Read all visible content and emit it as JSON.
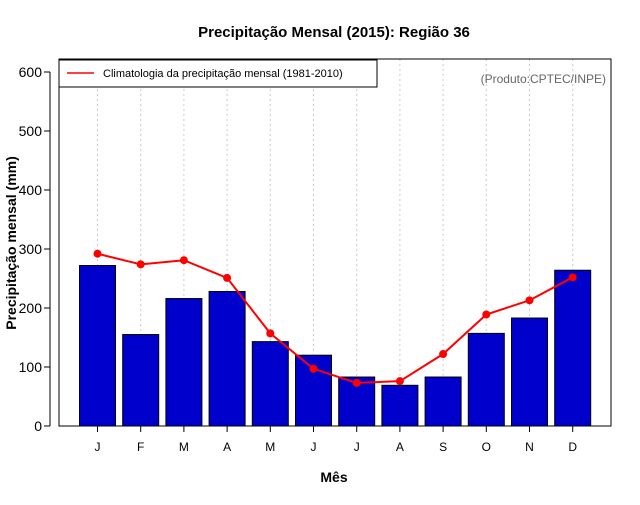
{
  "chart_data": {
    "type": "bar",
    "title": "Precipitação Mensal (2015): Região 36",
    "xlabel": "Mês",
    "ylabel": "Precipitação mensal (mm)",
    "ylim": [
      0,
      600
    ],
    "yticks": [
      0,
      100,
      200,
      300,
      400,
      500,
      600
    ],
    "categories": [
      "J",
      "F",
      "M",
      "A",
      "M",
      "J",
      "J",
      "A",
      "S",
      "O",
      "N",
      "D"
    ],
    "values": [
      272,
      155,
      216,
      228,
      143,
      120,
      83,
      69,
      83,
      157,
      183,
      264
    ],
    "bar_color": "#0000cd",
    "grid": "vertical dotted",
    "legend_position": "top-left",
    "annotation": "(Produto:CPTEC/INPE)",
    "series": [
      {
        "name": "Climatologia da precipitação mensal (1981-2010)",
        "type": "line",
        "color": "#ff0000",
        "values": [
          292,
          274,
          281,
          251,
          157,
          97,
          73,
          76,
          122,
          189,
          213,
          252
        ]
      }
    ]
  }
}
